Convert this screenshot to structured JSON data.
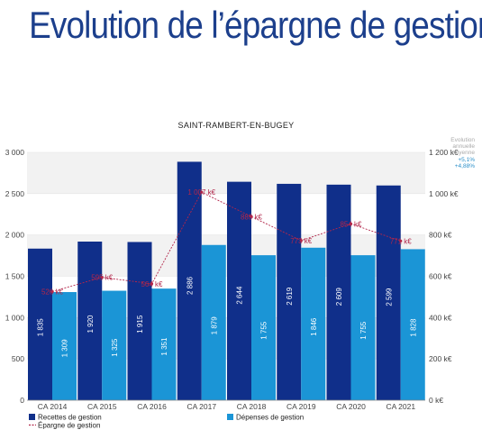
{
  "page": {
    "title": "Evolution de l’épargne de gestion"
  },
  "colors": {
    "recettes": "#102f8a",
    "depenses": "#1b95d6",
    "epargne": "#b2264a",
    "band": "#f2f2f2",
    "title": "#1c3f8c"
  },
  "chart_data": {
    "type": "bar",
    "title": "SAINT-RAMBERT-EN-BUGEY",
    "categories": [
      "CA 2014",
      "CA 2015",
      "CA 2016",
      "CA 2017",
      "CA 2018",
      "CA 2019",
      "CA 2020",
      "CA 2021"
    ],
    "series": [
      {
        "name": "Recettes de gestion",
        "axis": "left",
        "values": [
          1835,
          1920,
          1915,
          2886,
          2644,
          2619,
          2609,
          2599
        ],
        "labels": [
          "1 835",
          "1 920",
          "1 915",
          "2 886",
          "2 644",
          "2 619",
          "2 609",
          "2 599"
        ]
      },
      {
        "name": "Dépenses de gestion",
        "axis": "left",
        "values": [
          1309,
          1325,
          1351,
          1879,
          1755,
          1846,
          1755,
          1828
        ],
        "labels": [
          "1 309",
          "1 325",
          "1 351",
          "1 879",
          "1 755",
          "1 846",
          "1 755",
          "1 828"
        ]
      },
      {
        "name": "Épargne de gestion",
        "axis": "right",
        "type": "line",
        "values": [
          526,
          595,
          564,
          1007,
          889,
          773,
          854,
          771
        ],
        "labels": [
          "526 k€",
          "595 k€",
          "564 k€",
          "1 007 k€",
          "889 k€",
          "773 k€",
          "854 k€",
          "771 k€"
        ]
      }
    ],
    "y_left": {
      "ylim": [
        0,
        3000
      ],
      "ticks": [
        0,
        500,
        1000,
        1500,
        2000,
        2500,
        3000
      ],
      "tick_labels": [
        "0",
        "500",
        "1 000",
        "1 500",
        "2 000",
        "2 500",
        "3 000"
      ]
    },
    "y_right": {
      "ylim": [
        0,
        1200
      ],
      "ticks": [
        0,
        200,
        400,
        600,
        800,
        1000,
        1200
      ],
      "tick_labels": [
        "0 k€",
        "200 k€",
        "400 k€",
        "600 k€",
        "800 k€",
        "1 000 k€",
        "1 200 k€"
      ]
    },
    "legend": [
      "Recettes de gestion",
      "Dépenses de gestion",
      "Épargne de gestion"
    ],
    "legend_position": "bottom",
    "annotation": {
      "lines": [
        "Evolution",
        "annuelle",
        "moyenne"
      ],
      "values": [
        "+5,1%",
        "+4,88%"
      ]
    }
  }
}
